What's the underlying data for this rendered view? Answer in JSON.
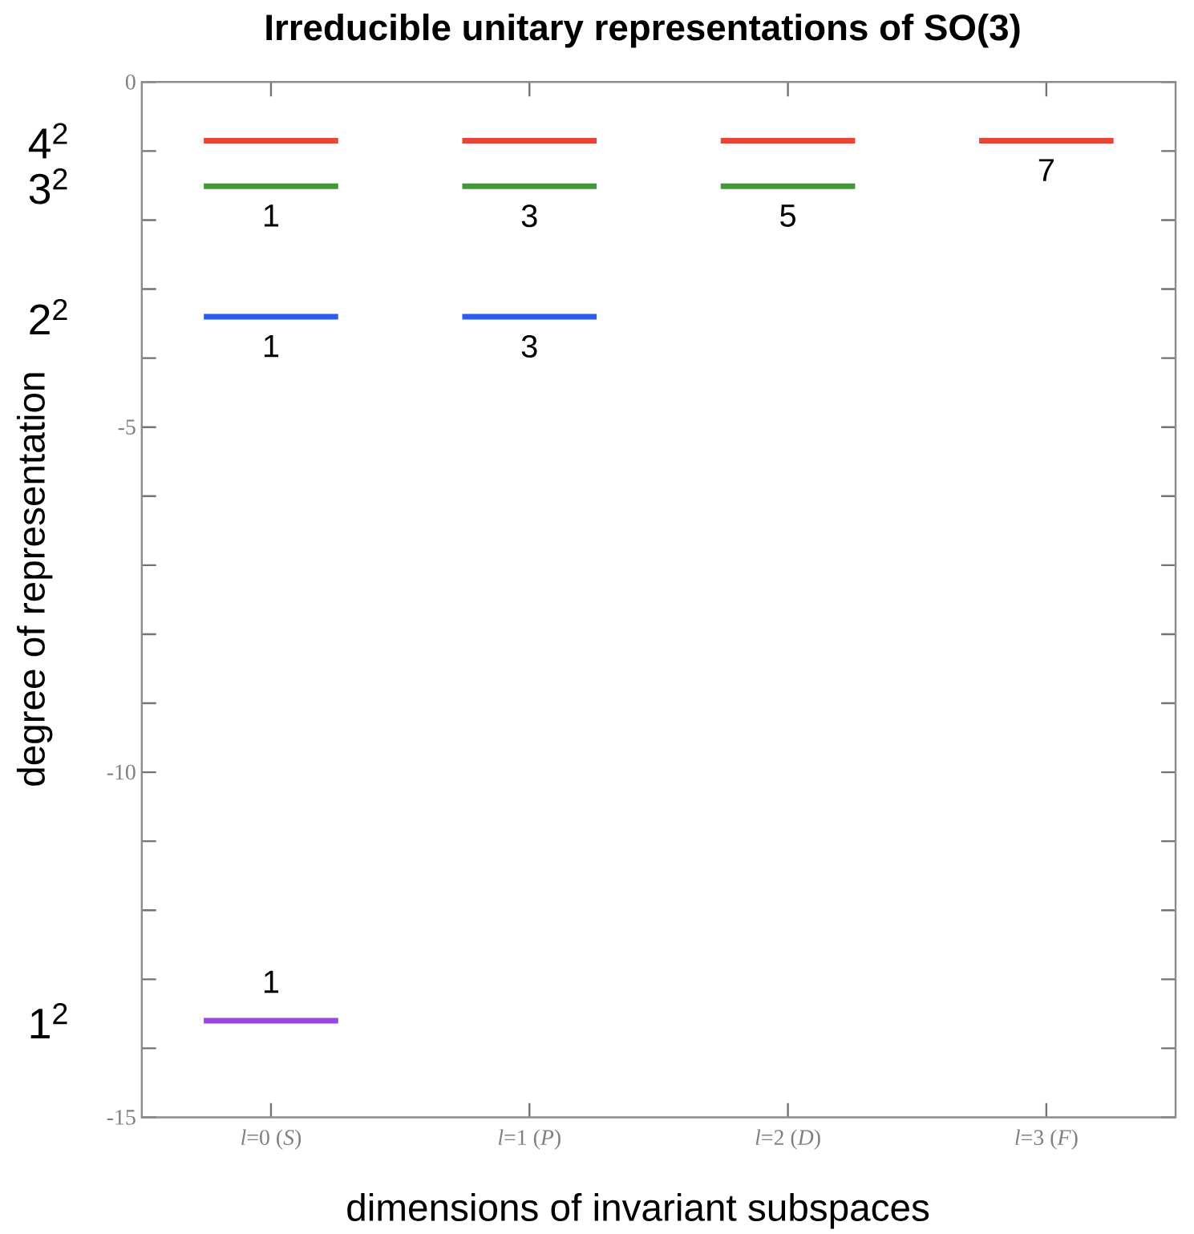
{
  "chart_data": {
    "type": "line",
    "title": "Irreducible unitary representations of SO(3)",
    "xlabel": "dimensions of invariant subspaces",
    "ylabel": "degree of representation",
    "series": [
      {
        "color": "#e8443a",
        "x": [
          -0.26,
          0.26
        ],
        "values": [
          -0.85,
          -0.85
        ]
      },
      {
        "color": "#e8443a",
        "x": [
          0.74,
          1.26
        ],
        "values": [
          -0.85,
          -0.85
        ]
      },
      {
        "color": "#e8443a",
        "x": [
          1.74,
          2.26
        ],
        "values": [
          -0.85,
          -0.85
        ]
      },
      {
        "color": "#e8443a",
        "x": [
          2.74,
          3.26
        ],
        "values": [
          -0.85,
          -0.85
        ]
      },
      {
        "color": "#3f9a35",
        "x": [
          -0.26,
          0.26
        ],
        "values": [
          -1.51,
          -1.51
        ]
      },
      {
        "color": "#3f9a35",
        "x": [
          0.74,
          1.26
        ],
        "values": [
          -1.51,
          -1.51
        ]
      },
      {
        "color": "#3f9a35",
        "x": [
          1.74,
          2.26
        ],
        "values": [
          -1.51,
          -1.51
        ]
      },
      {
        "color": "#2b5cf2",
        "x": [
          -0.26,
          0.26
        ],
        "values": [
          -3.4,
          -3.4
        ]
      },
      {
        "color": "#2b5cf2",
        "x": [
          0.74,
          1.26
        ],
        "values": [
          -3.4,
          -3.4
        ]
      },
      {
        "color": "#9a45e0",
        "x": [
          -0.26,
          0.26
        ],
        "values": [
          -13.6,
          -13.6
        ]
      }
    ],
    "xlim": [
      -0.5,
      3.5
    ],
    "xticks": [
      {
        "value": 0,
        "label": "*l*=0 (*S*)"
      },
      {
        "value": 1,
        "label": "*l*=1 (*P*)"
      },
      {
        "value": 2,
        "label": "*l*=2 (*D*)"
      },
      {
        "value": 3,
        "label": "*l*=3 (*F*)"
      }
    ],
    "ylim": [
      -15,
      0
    ],
    "yticks": [
      0,
      -5,
      -10,
      -15
    ],
    "annotations": [
      "4$^{2}$",
      "3$^{2}$",
      "2$^{2}$",
      "1$^{2}$",
      {
        "text": "1",
        "x": 0,
        "y": -1.51
      },
      {
        "text": "3",
        "x": 1,
        "y": -1.51
      },
      {
        "text": "5",
        "x": 2,
        "y": -1.51
      },
      {
        "text": "7",
        "x": 3,
        "y": -0.85
      },
      {
        "text": "1",
        "x": 0,
        "y": -3.4
      },
      {
        "text": "3",
        "x": 1,
        "y": -3.4
      },
      {
        "text": "1",
        "x": 0,
        "y": -13.6
      }
    ]
  }
}
